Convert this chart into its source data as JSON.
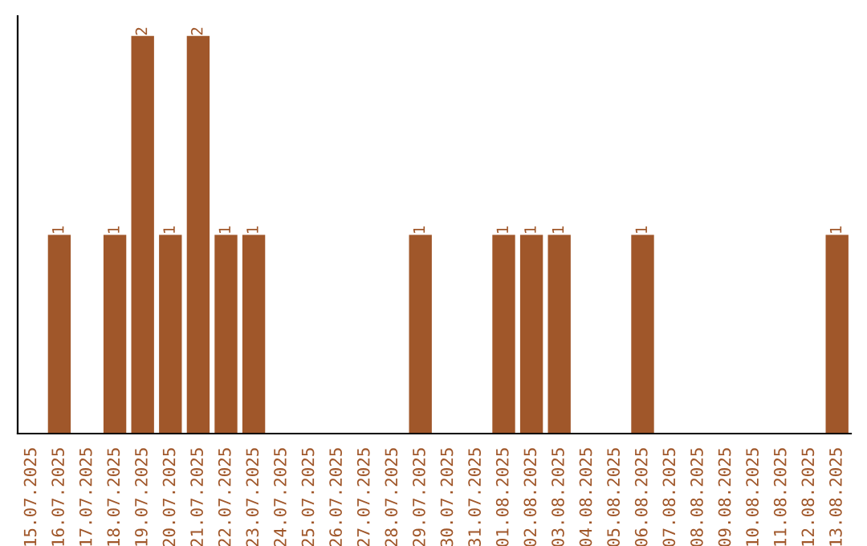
{
  "chart_data": {
    "type": "bar",
    "categories": [
      "15.07.2025",
      "16.07.2025",
      "17.07.2025",
      "18.07.2025",
      "19.07.2025",
      "20.07.2025",
      "21.07.2025",
      "22.07.2025",
      "23.07.2025",
      "24.07.2025",
      "25.07.2025",
      "26.07.2025",
      "27.07.2025",
      "28.07.2025",
      "29.07.2025",
      "30.07.2025",
      "31.07.2025",
      "01.08.2025",
      "02.08.2025",
      "03.08.2025",
      "04.08.2025",
      "05.08.2025",
      "06.08.2025",
      "07.08.2025",
      "08.08.2025",
      "09.08.2025",
      "10.08.2025",
      "11.08.2025",
      "12.08.2025",
      "13.08.2025"
    ],
    "values": [
      0,
      1,
      0,
      1,
      2,
      1,
      2,
      1,
      1,
      0,
      0,
      0,
      0,
      0,
      1,
      0,
      0,
      1,
      1,
      1,
      0,
      0,
      1,
      0,
      0,
      0,
      0,
      0,
      0,
      1
    ],
    "value_labels": [
      null,
      "1",
      null,
      "1",
      "2",
      "1",
      "2",
      "1",
      "1",
      null,
      null,
      null,
      null,
      null,
      "1",
      null,
      null,
      "1",
      "1",
      "1",
      null,
      null,
      "1",
      null,
      null,
      null,
      null,
      null,
      null,
      "1"
    ],
    "color": "#a0572a",
    "grid": false,
    "legend": false
  }
}
